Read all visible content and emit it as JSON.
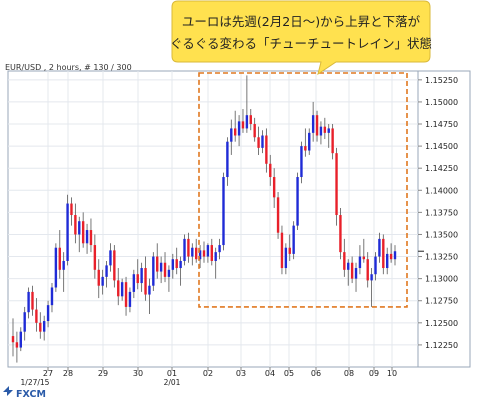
{
  "callout": {
    "line1": "ユーロは先週(2月2日～)から上昇と下落が",
    "line2": "ぐるぐる変わる「チューチュートレイン」状態"
  },
  "header_label": "EUR/USD , 2 hours, # 130 / 300",
  "logo_text": "FXCM",
  "colors": {
    "up": "#1f2bd6",
    "down": "#e8202a",
    "callout_bg": "#ffe14f",
    "highlight": "#e07820"
  },
  "chart_data": {
    "type": "candlestick",
    "title": "EUR/USD , 2 hours, # 130 / 300",
    "ylim": [
      1.12,
      1.1535
    ],
    "y_ticks": [
      1.1225,
      1.125,
      1.1275,
      1.13,
      1.1325,
      1.135,
      1.1375,
      1.14,
      1.1425,
      1.145,
      1.1475,
      1.15,
      1.1525
    ],
    "y_tick_labels": [
      "1.12250",
      "1.12500",
      "1.12750",
      "1.13000",
      "1.13250",
      "1.13500",
      "1.13750",
      "1.14000",
      "1.14250",
      "1.14500",
      "1.14750",
      "1.15000",
      "1.15250"
    ],
    "x_tick_labels": [
      "27",
      "28",
      "29",
      "30",
      "01",
      "02",
      "03",
      "04",
      "05",
      "06",
      "08",
      "09",
      "10"
    ],
    "x_sub_labels": [
      {
        "under": "27",
        "text": "1/27/15"
      },
      {
        "under": "01",
        "text": "2/01"
      }
    ],
    "last_price": 1.1331,
    "highlight_region": {
      "x_from": "02",
      "x_to": "10",
      "y_from": 1.1268,
      "y_to": 1.1535
    },
    "ohlc": [
      [
        1.1235,
        1.1255,
        1.1212,
        1.1228
      ],
      [
        1.1228,
        1.124,
        1.1205,
        1.1222
      ],
      [
        1.1222,
        1.1245,
        1.1218,
        1.124
      ],
      [
        1.124,
        1.1268,
        1.123,
        1.1262
      ],
      [
        1.1262,
        1.129,
        1.1255,
        1.1285
      ],
      [
        1.1285,
        1.1292,
        1.1258,
        1.1265
      ],
      [
        1.1265,
        1.1278,
        1.124,
        1.125
      ],
      [
        1.125,
        1.1262,
        1.1232,
        1.124
      ],
      [
        1.124,
        1.1258,
        1.123,
        1.1252
      ],
      [
        1.1252,
        1.1275,
        1.1245,
        1.127
      ],
      [
        1.127,
        1.1295,
        1.1262,
        1.129
      ],
      [
        1.129,
        1.134,
        1.1285,
        1.1335
      ],
      [
        1.1335,
        1.1355,
        1.13,
        1.131
      ],
      [
        1.131,
        1.133,
        1.1285,
        1.132
      ],
      [
        1.132,
        1.1395,
        1.1315,
        1.1385
      ],
      [
        1.1385,
        1.1392,
        1.136,
        1.1372
      ],
      [
        1.1372,
        1.1385,
        1.134,
        1.135
      ],
      [
        1.135,
        1.137,
        1.133,
        1.1365
      ],
      [
        1.1365,
        1.1375,
        1.1335,
        1.134
      ],
      [
        1.134,
        1.1362,
        1.1328,
        1.1355
      ],
      [
        1.1355,
        1.1368,
        1.133,
        1.1338
      ],
      [
        1.1338,
        1.135,
        1.13,
        1.131
      ],
      [
        1.131,
        1.1322,
        1.1278,
        1.1292
      ],
      [
        1.1292,
        1.131,
        1.1282,
        1.1302
      ],
      [
        1.1302,
        1.132,
        1.129,
        1.1315
      ],
      [
        1.1315,
        1.134,
        1.1308,
        1.1332
      ],
      [
        1.1332,
        1.1338,
        1.129,
        1.1298
      ],
      [
        1.1298,
        1.1312,
        1.127,
        1.128
      ],
      [
        1.128,
        1.13,
        1.1275,
        1.1296
      ],
      [
        1.1296,
        1.1302,
        1.1258,
        1.1268
      ],
      [
        1.1268,
        1.129,
        1.1262,
        1.1285
      ],
      [
        1.1285,
        1.131,
        1.1278,
        1.1305
      ],
      [
        1.1305,
        1.1322,
        1.1288,
        1.1295
      ],
      [
        1.1295,
        1.1318,
        1.1285,
        1.1312
      ],
      [
        1.1312,
        1.1325,
        1.1275,
        1.1282
      ],
      [
        1.1282,
        1.13,
        1.126,
        1.1292
      ],
      [
        1.1292,
        1.133,
        1.1286,
        1.1325
      ],
      [
        1.1325,
        1.134,
        1.13,
        1.1308
      ],
      [
        1.1308,
        1.1325,
        1.1295,
        1.1318
      ],
      [
        1.1318,
        1.133,
        1.1296,
        1.1302
      ],
      [
        1.1302,
        1.1315,
        1.1285,
        1.131
      ],
      [
        1.131,
        1.1328,
        1.13,
        1.1322
      ],
      [
        1.1322,
        1.1335,
        1.1305,
        1.1312
      ],
      [
        1.1312,
        1.1325,
        1.1292,
        1.132
      ],
      [
        1.132,
        1.135,
        1.1315,
        1.1345
      ],
      [
        1.1345,
        1.1352,
        1.1318,
        1.1325
      ],
      [
        1.1325,
        1.134,
        1.1315,
        1.1335
      ],
      [
        1.1335,
        1.1345,
        1.1318,
        1.1322
      ],
      [
        1.1322,
        1.1338,
        1.1312,
        1.1332
      ],
      [
        1.1332,
        1.1342,
        1.1318,
        1.1325
      ],
      [
        1.1325,
        1.134,
        1.1318,
        1.1338
      ],
      [
        1.1338,
        1.1345,
        1.1315,
        1.132
      ],
      [
        1.132,
        1.1335,
        1.13,
        1.133
      ],
      [
        1.133,
        1.1345,
        1.1322,
        1.1338
      ],
      [
        1.1338,
        1.142,
        1.1332,
        1.1415
      ],
      [
        1.1415,
        1.146,
        1.1405,
        1.1455
      ],
      [
        1.1455,
        1.148,
        1.144,
        1.147
      ],
      [
        1.147,
        1.149,
        1.1455,
        1.1462
      ],
      [
        1.1462,
        1.1485,
        1.145,
        1.1478
      ],
      [
        1.1478,
        1.1492,
        1.1465,
        1.147
      ],
      [
        1.147,
        1.153,
        1.1465,
        1.1485
      ],
      [
        1.1485,
        1.1492,
        1.1468,
        1.1475
      ],
      [
        1.1475,
        1.1482,
        1.1455,
        1.146
      ],
      [
        1.146,
        1.1472,
        1.144,
        1.1448
      ],
      [
        1.1448,
        1.1468,
        1.1442,
        1.1462
      ],
      [
        1.1462,
        1.147,
        1.142,
        1.143
      ],
      [
        1.143,
        1.144,
        1.1405,
        1.1415
      ],
      [
        1.1415,
        1.1425,
        1.138,
        1.1392
      ],
      [
        1.1392,
        1.1398,
        1.1345,
        1.1352
      ],
      [
        1.1352,
        1.136,
        1.1305,
        1.1312
      ],
      [
        1.1312,
        1.134,
        1.1305,
        1.1335
      ],
      [
        1.1335,
        1.135,
        1.132,
        1.1328
      ],
      [
        1.1328,
        1.1365,
        1.1322,
        1.136
      ],
      [
        1.136,
        1.142,
        1.1355,
        1.1415
      ],
      [
        1.1415,
        1.1455,
        1.1408,
        1.145
      ],
      [
        1.145,
        1.147,
        1.1438,
        1.1445
      ],
      [
        1.1445,
        1.147,
        1.144,
        1.1465
      ],
      [
        1.1465,
        1.15,
        1.1455,
        1.1485
      ],
      [
        1.1485,
        1.149,
        1.1455,
        1.1462
      ],
      [
        1.1462,
        1.1478,
        1.1452,
        1.1472
      ],
      [
        1.1472,
        1.1482,
        1.1458,
        1.1465
      ],
      [
        1.1465,
        1.1475,
        1.1448,
        1.147
      ],
      [
        1.147,
        1.1475,
        1.1435,
        1.1442
      ],
      [
        1.1442,
        1.1448,
        1.136,
        1.1372
      ],
      [
        1.1372,
        1.138,
        1.1322,
        1.133
      ],
      [
        1.133,
        1.1345,
        1.1302,
        1.131
      ],
      [
        1.131,
        1.1322,
        1.1292,
        1.1318
      ],
      [
        1.1318,
        1.1325,
        1.1295,
        1.13
      ],
      [
        1.13,
        1.1318,
        1.1285,
        1.1312
      ],
      [
        1.1312,
        1.1338,
        1.1305,
        1.1325
      ],
      [
        1.1325,
        1.1345,
        1.1318,
        1.1322
      ],
      [
        1.1322,
        1.133,
        1.129,
        1.1298
      ],
      [
        1.1298,
        1.1312,
        1.1268,
        1.1305
      ],
      [
        1.1305,
        1.133,
        1.1298,
        1.1325
      ],
      [
        1.1325,
        1.1352,
        1.1318,
        1.1345
      ],
      [
        1.1345,
        1.135,
        1.1305,
        1.1312
      ],
      [
        1.1312,
        1.1335,
        1.1305,
        1.1328
      ],
      [
        1.1328,
        1.134,
        1.1318,
        1.1322
      ],
      [
        1.1322,
        1.1338,
        1.1315,
        1.1331
      ]
    ]
  }
}
